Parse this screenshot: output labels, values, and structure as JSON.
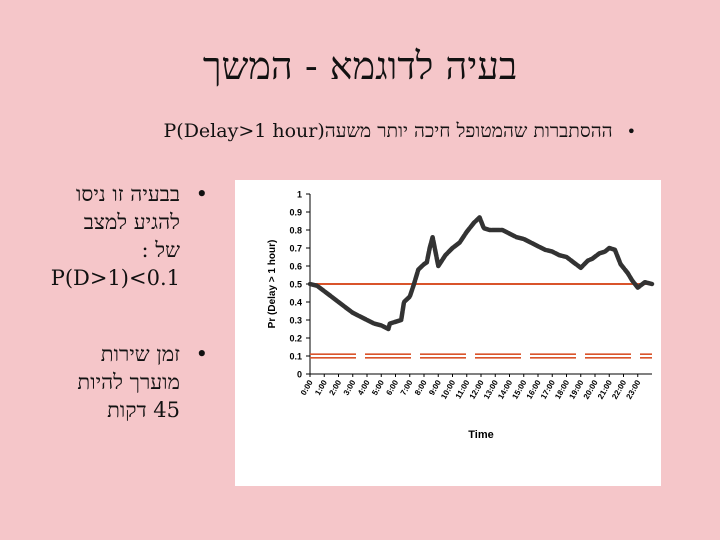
{
  "slide": {
    "title": "בעיה לדוגמא - המשך",
    "bullet_main": "ההסתברות שהמטופל חיכה יותר משעה",
    "bullet_main_expr": "P(Delay>1 hour)",
    "side_points": [
      {
        "lines": [
          "בבעיה זו ניסו",
          "להגיע למצב",
          "של :",
          "P(D>1)<0.1"
        ]
      },
      {
        "lines": [
          "זמן שירות",
          "מוערך להיות",
          "45 דקות"
        ]
      }
    ],
    "bullet_symbol": "•"
  },
  "chart_data": {
    "type": "line",
    "xlabel": "Time",
    "ylabel": "Pr (Delay > 1 hour)",
    "ylim": [
      0,
      1
    ],
    "yticks": [
      "0",
      "0.1",
      "0.2",
      "0.3",
      "0.4",
      "0.5",
      "0.6",
      "0.7",
      "0.8",
      "0.9",
      "1"
    ],
    "categories": [
      "0:00",
      "1:00",
      "2:00",
      "3:00",
      "4:00",
      "5:00",
      "6:00",
      "7:00",
      "8:00",
      "9:00",
      "10:00",
      "11:00",
      "12:00",
      "13:00",
      "14:00",
      "15:00",
      "16:00",
      "17:00",
      "18:00",
      "19:00",
      "20:00",
      "21:00",
      "22:00",
      "23:00"
    ],
    "series": [
      {
        "x": [
          0,
          0.5,
          1,
          1.5,
          2,
          2.5,
          3,
          3.5,
          4,
          4.5,
          5,
          5.5,
          5.6,
          6,
          6.4,
          6.6,
          7,
          7.3,
          7.6,
          8,
          8.2,
          8.4,
          8.6,
          9,
          9.5,
          10,
          10.5,
          11,
          11.5,
          11.9,
          12.2,
          12.6,
          13,
          13.5,
          14,
          14.5,
          15,
          15.5,
          16,
          16.5,
          17,
          17.5,
          18,
          18.5,
          19,
          19.5,
          19.8,
          20.3,
          20.7,
          21,
          21.4,
          21.8,
          22.3,
          22.6,
          23,
          23.5,
          24
        ],
        "values": [
          0.5,
          0.49,
          0.46,
          0.43,
          0.4,
          0.37,
          0.34,
          0.32,
          0.3,
          0.28,
          0.27,
          0.25,
          0.28,
          0.29,
          0.3,
          0.4,
          0.43,
          0.5,
          0.58,
          0.61,
          0.62,
          0.7,
          0.76,
          0.6,
          0.66,
          0.7,
          0.73,
          0.79,
          0.84,
          0.87,
          0.81,
          0.8,
          0.8,
          0.8,
          0.78,
          0.76,
          0.75,
          0.73,
          0.71,
          0.69,
          0.68,
          0.66,
          0.65,
          0.62,
          0.59,
          0.63,
          0.64,
          0.67,
          0.68,
          0.7,
          0.69,
          0.61,
          0.56,
          0.52,
          0.48,
          0.51,
          0.5
        ],
        "color": "#333333"
      }
    ],
    "reference_lines": [
      {
        "y": 0.5,
        "style": "solid",
        "color": "#d9542b"
      },
      {
        "y": 0.1,
        "style": "dashed-double",
        "color": "#d9542b"
      }
    ],
    "grid": false
  }
}
